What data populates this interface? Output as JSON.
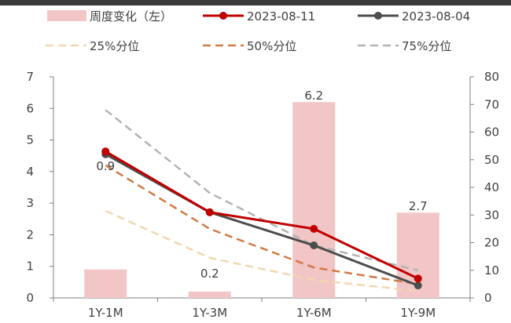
{
  "chart_data": {
    "type": "bar",
    "categories": [
      "1Y-1M",
      "1Y-3M",
      "1Y-6M",
      "1Y-9M"
    ],
    "left_axis": {
      "ylim": [
        0,
        7
      ],
      "ticks": [
        "0",
        "1",
        "2",
        "3",
        "4",
        "5",
        "6",
        "7"
      ]
    },
    "right_axis": {
      "ylim": [
        0,
        80
      ],
      "ticks": [
        "0",
        "10",
        "20",
        "30",
        "40",
        "50",
        "60",
        "70",
        "80"
      ]
    },
    "bar_series": {
      "name": "周度变化（左）",
      "axis": "left",
      "values": [
        0.9,
        0.2,
        6.2,
        2.7
      ],
      "labels": [
        "0.9",
        "0.2",
        "6.2",
        "2.7"
      ],
      "color": "#f2c6c6"
    },
    "line_series": [
      {
        "name": "2023-08-11",
        "axis": "right",
        "values": [
          53,
          31,
          25,
          7
        ],
        "color": "#c00000",
        "style": "solid",
        "markers": true
      },
      {
        "name": "2023-08-04",
        "axis": "right",
        "values": [
          52,
          31,
          19,
          4.5
        ],
        "color": "#4d4d4d",
        "style": "solid",
        "markers": true
      },
      {
        "name": "25%分位",
        "axis": "right",
        "values": [
          31.5,
          14.5,
          6.5,
          2.5
        ],
        "color": "#f2d7b0",
        "style": "dashed",
        "markers": false
      },
      {
        "name": "50%分位",
        "axis": "right",
        "values": [
          48,
          25,
          11,
          5
        ],
        "color": "#d07a45",
        "style": "dashed",
        "markers": false
      },
      {
        "name": "75%分位",
        "axis": "right",
        "values": [
          68,
          38,
          19,
          10
        ],
        "color": "#b3b3b3",
        "style": "dashed",
        "markers": false
      }
    ],
    "grid": false,
    "legend_position": "top"
  }
}
